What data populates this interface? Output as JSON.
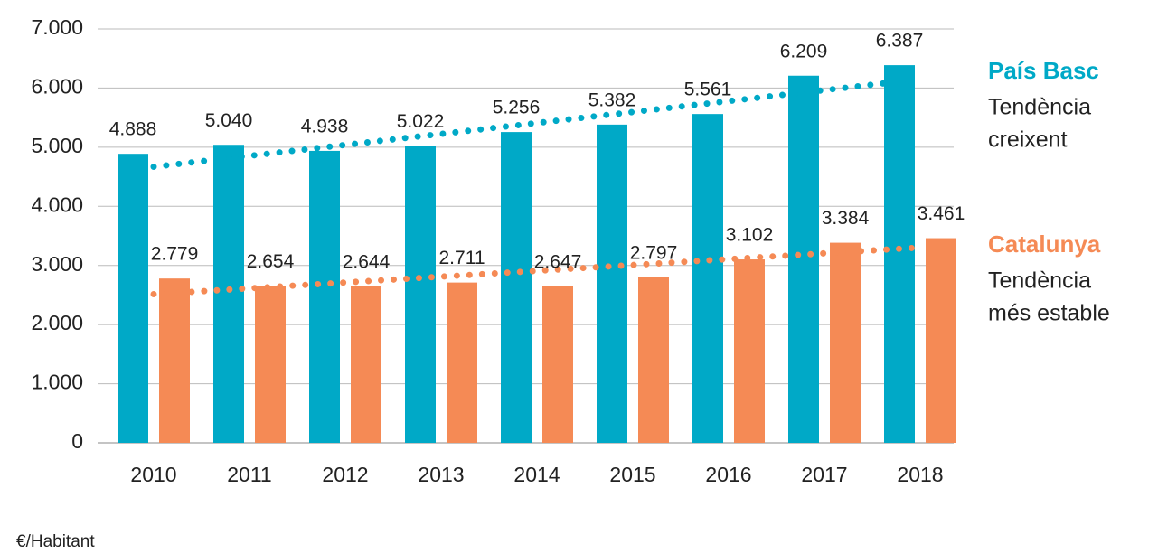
{
  "chart_data": {
    "type": "bar",
    "categories": [
      "2010",
      "2011",
      "2012",
      "2013",
      "2014",
      "2015",
      "2016",
      "2017",
      "2018"
    ],
    "series": [
      {
        "name": "País Basc",
        "color": "#00a9c7",
        "trendline": true,
        "trend_label": [
          "Tendència",
          "creixent"
        ],
        "values": [
          4888,
          5040,
          4938,
          5022,
          5256,
          5382,
          5561,
          6209,
          6387
        ],
        "value_labels": [
          "4.888",
          "5.040",
          "4.938",
          "5.022",
          "5.256",
          "5.382",
          "5.561",
          "6.209",
          "6.387"
        ]
      },
      {
        "name": "Catalunya",
        "color": "#f58a55",
        "trendline": true,
        "trend_label": [
          "Tendència",
          "més estable"
        ],
        "values": [
          2779,
          2654,
          2644,
          2711,
          2647,
          2797,
          3102,
          3384,
          3461
        ],
        "value_labels": [
          "2.779",
          "2.654",
          "2.644",
          "2.711",
          "2.647",
          "2.797",
          "3.102",
          "3.384",
          "3.461"
        ]
      }
    ],
    "ylim": [
      0,
      7000
    ],
    "yticks": [
      0,
      {
        "value": 1000,
        "label": "1.000"
      },
      {
        "value": 2000,
        "label": "2.000"
      },
      {
        "value": 3000,
        "label": "3.000"
      },
      {
        "value": 4000,
        "label": "4.000"
      },
      {
        "value": 5000,
        "label": "5.000"
      },
      {
        "value": 6000,
        "label": "6.000"
      },
      {
        "value": 7000,
        "label": "7.000"
      }
    ],
    "grid": true,
    "unit_label": "€/Habitant"
  }
}
